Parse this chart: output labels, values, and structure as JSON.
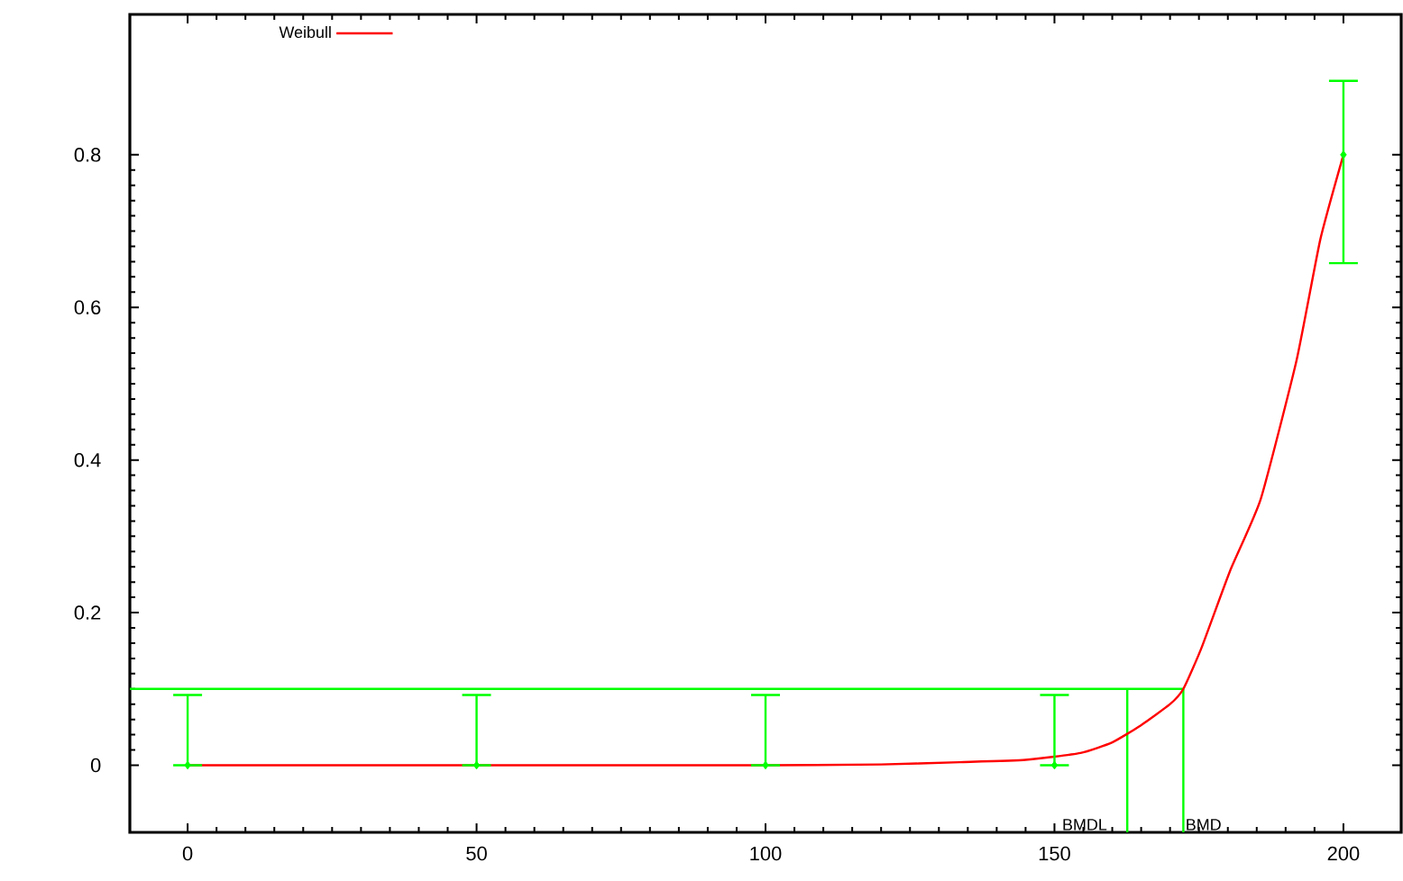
{
  "chart_data": {
    "type": "line",
    "xlim": [
      -10,
      210
    ],
    "ylim": [
      -0.088,
      0.984
    ],
    "xticks": [
      0,
      50,
      100,
      150,
      200
    ],
    "yticks": [
      0,
      0.2,
      0.4,
      0.6,
      0.8
    ],
    "grid": false,
    "legend": "top left",
    "series": [
      {
        "name": "Weibull",
        "color": "#ff0000",
        "x": [
          0,
          50,
          100,
          120,
          133.6,
          145,
          154.5,
          160,
          164.9,
          170,
          172.3,
          175.4,
          180.4,
          185.7,
          191.9,
          196,
          200
        ],
        "values": [
          0,
          0,
          0,
          0.001,
          0.004,
          0.007,
          0.016,
          0.03,
          0.052,
          0.08,
          0.1,
          0.153,
          0.255,
          0.349,
          0.531,
          0.689,
          0.8
        ]
      },
      {
        "type": "scatter",
        "color": "#00ff00",
        "marker": "diamond",
        "x": [
          0,
          50,
          100,
          150,
          200
        ],
        "values": [
          0,
          0,
          0,
          0,
          0.8
        ],
        "errors": [
          [
            0,
            0.092
          ],
          [
            0,
            0.092
          ],
          [
            0,
            0.092
          ],
          [
            0,
            0.092
          ],
          [
            0.658,
            0.897
          ]
        ]
      }
    ],
    "ref_lines": [
      {
        "axis": "y",
        "value": 0.1,
        "color": "#00ff00"
      },
      {
        "axis": "x",
        "value": 162.6,
        "label": "BMDL",
        "color": "#00ff00"
      },
      {
        "axis": "x",
        "value": 172.3,
        "label": "BMD",
        "color": "#00ff00"
      }
    ]
  }
}
